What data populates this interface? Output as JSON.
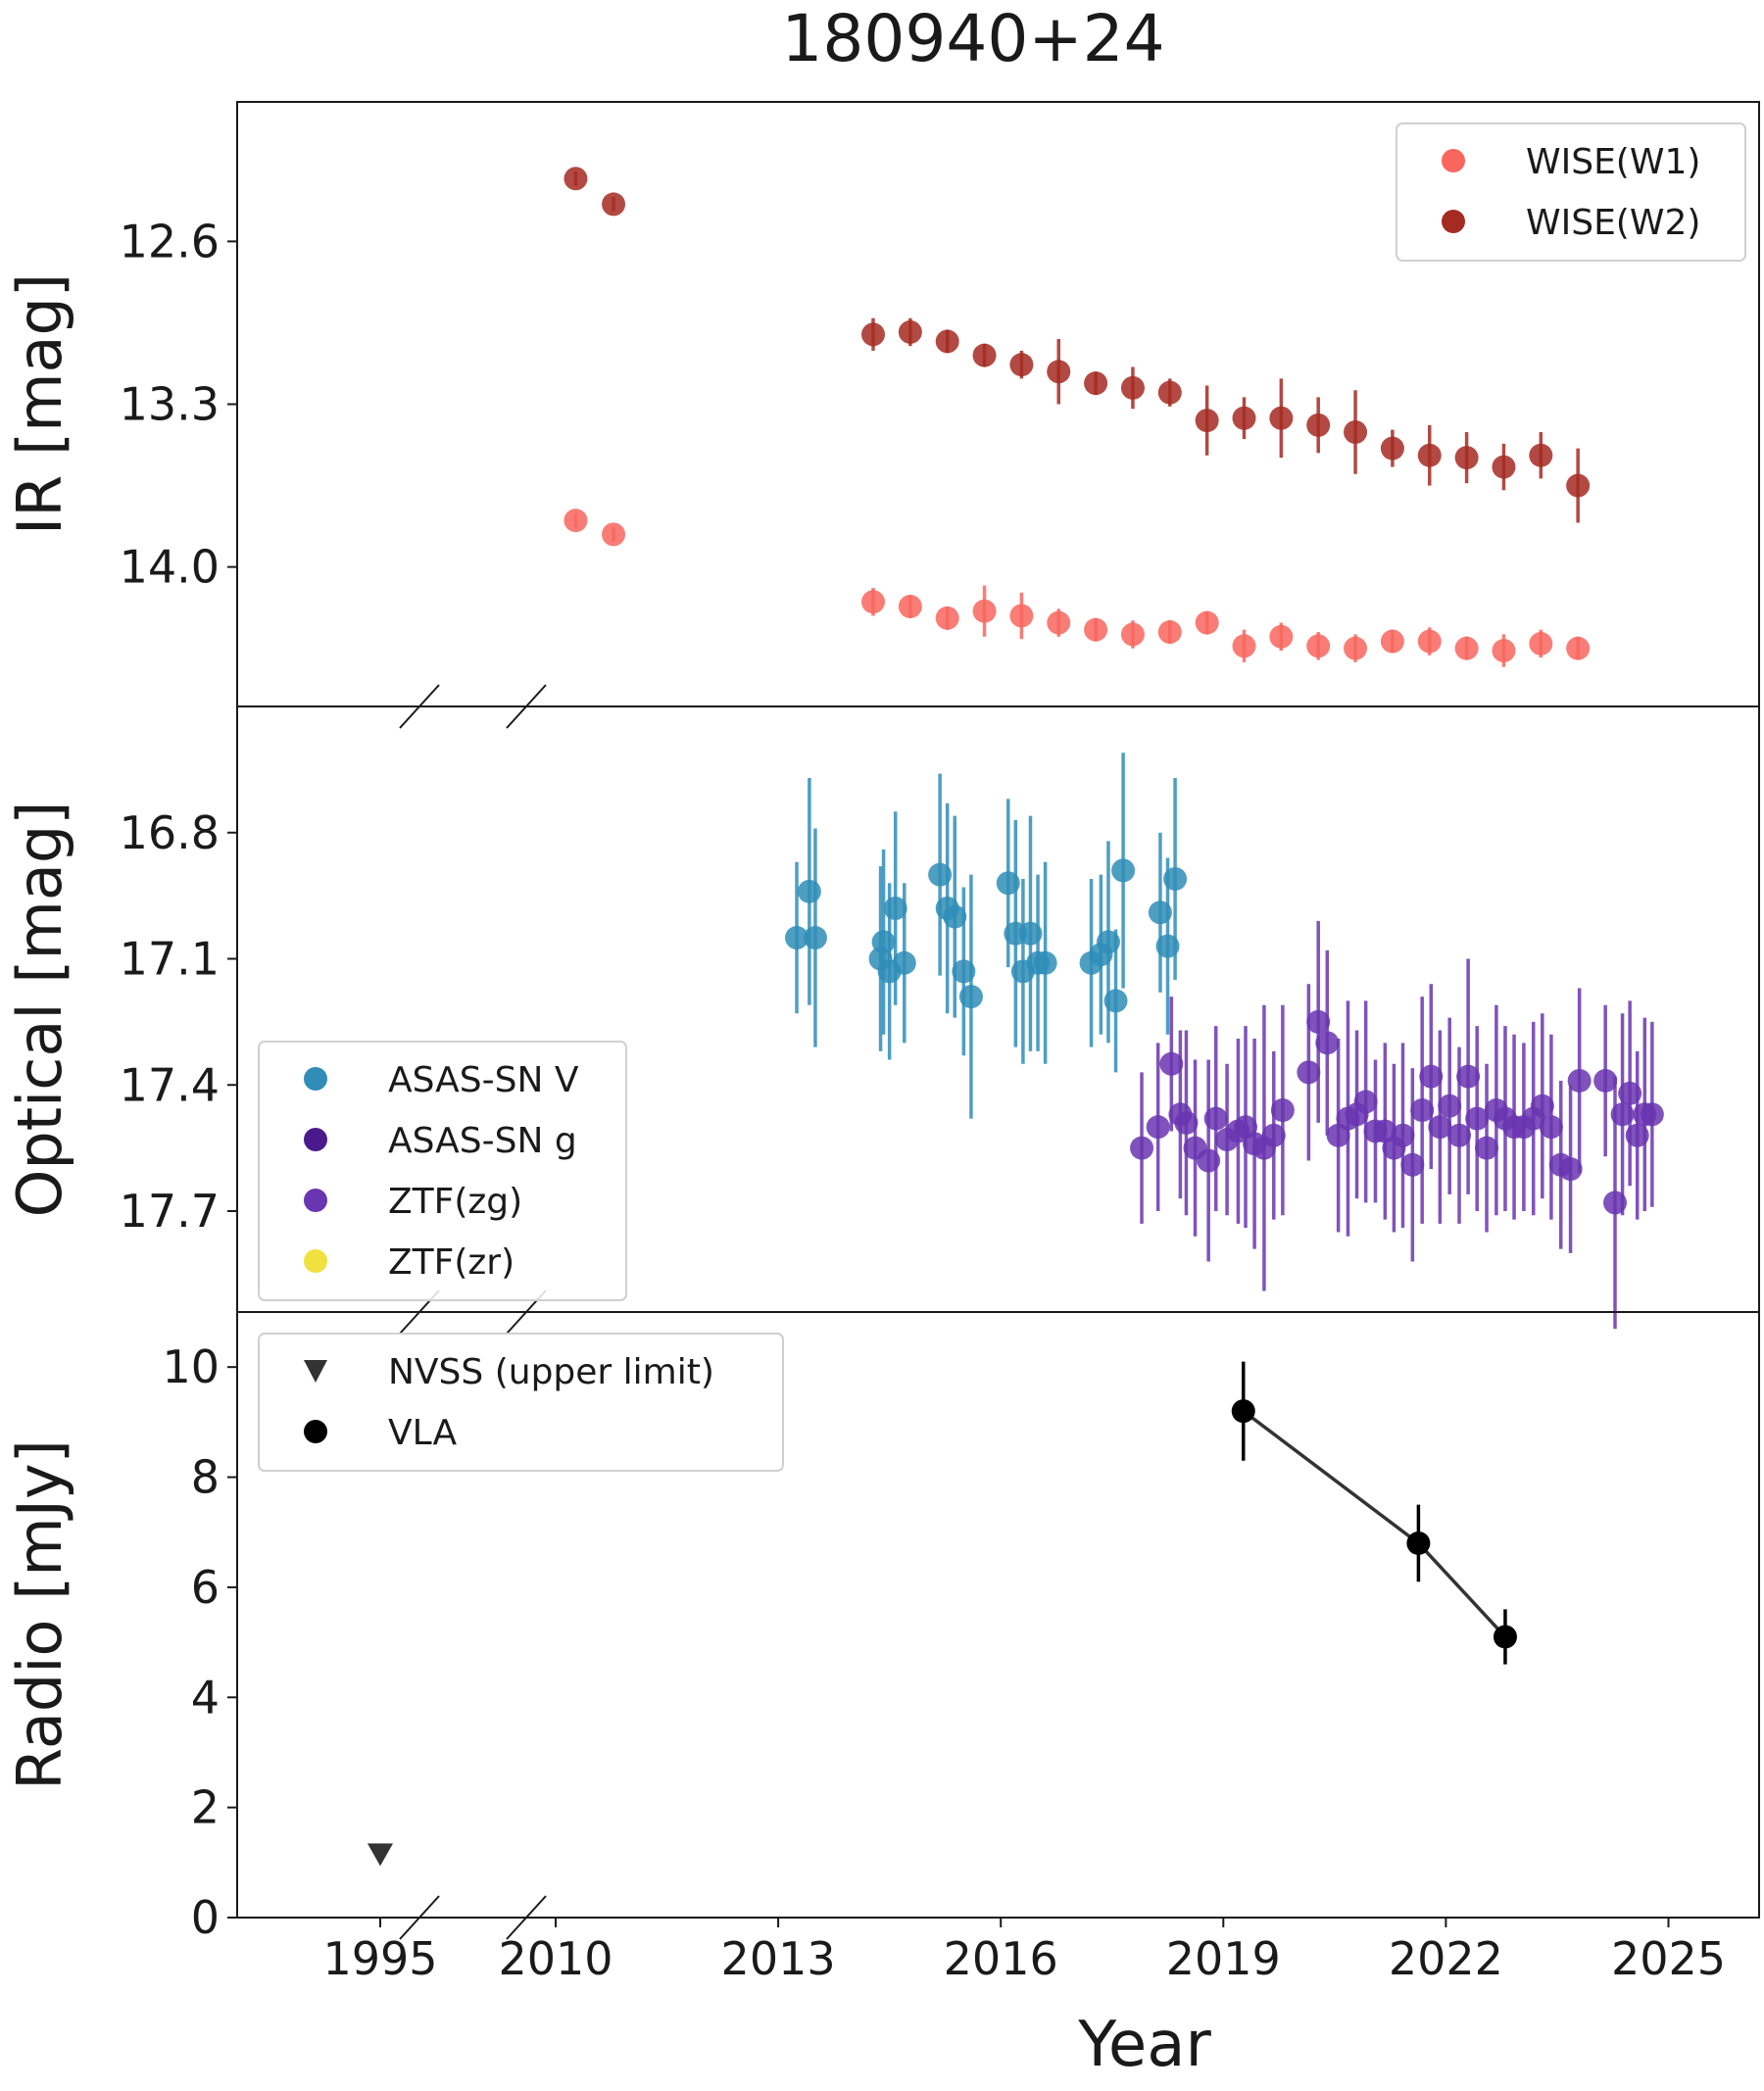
{
  "chart_data": {
    "type": "scatter",
    "title": "180940+24",
    "xlabel": "Year",
    "x_ticks": [
      "1995",
      "2010",
      "2013",
      "2016",
      "2019",
      "2022",
      "2025"
    ],
    "x_axis_break": "between 1995 and 2010",
    "panels": [
      {
        "id": "ir",
        "ylabel": "IR [mag]",
        "y_inverted": true,
        "ylim": [
          12.0,
          14.6
        ],
        "y_ticks": [
          "12.6",
          "13.3",
          "14.0"
        ],
        "legend_position": "top-right",
        "series": [
          {
            "name": "WISE(W1)",
            "color": "#f8665e",
            "x": [
              2010.27,
              2010.78,
              2014.28,
              2014.78,
              2015.28,
              2015.78,
              2016.28,
              2016.78,
              2017.28,
              2017.78,
              2018.28,
              2018.78,
              2019.28,
              2019.78,
              2020.28,
              2020.78,
              2021.28,
              2021.78,
              2022.28,
              2022.78,
              2023.28,
              2023.78
            ],
            "y": [
              13.8,
              13.86,
              14.15,
              14.17,
              14.22,
              14.19,
              14.21,
              14.24,
              14.27,
              14.29,
              14.28,
              14.24,
              14.34,
              14.3,
              14.34,
              14.35,
              14.32,
              14.32,
              14.35,
              14.36,
              14.33,
              14.35
            ],
            "yerr": [
              0.03,
              0.03,
              0.06,
              0.05,
              0.05,
              0.11,
              0.1,
              0.06,
              0.05,
              0.06,
              0.05,
              0.05,
              0.07,
              0.06,
              0.06,
              0.06,
              0.05,
              0.06,
              0.05,
              0.07,
              0.06,
              0.05
            ]
          },
          {
            "name": "WISE(W2)",
            "color": "#a52a22",
            "x": [
              2010.27,
              2010.78,
              2014.28,
              2014.78,
              2015.28,
              2015.78,
              2016.28,
              2016.78,
              2017.28,
              2017.78,
              2018.28,
              2018.78,
              2019.28,
              2019.78,
              2020.28,
              2020.78,
              2021.28,
              2021.78,
              2022.28,
              2022.78,
              2023.28,
              2023.78
            ],
            "y": [
              12.33,
              12.44,
              13.0,
              12.99,
              13.03,
              13.09,
              13.13,
              13.16,
              13.21,
              13.23,
              13.25,
              13.37,
              13.36,
              13.36,
              13.39,
              13.42,
              13.49,
              13.52,
              13.53,
              13.57,
              13.52,
              13.65
            ],
            "yerr": [
              0.03,
              0.03,
              0.07,
              0.06,
              0.05,
              0.05,
              0.06,
              0.14,
              0.05,
              0.09,
              0.06,
              0.15,
              0.09,
              0.17,
              0.12,
              0.18,
              0.08,
              0.13,
              0.11,
              0.1,
              0.1,
              0.16
            ]
          }
        ]
      },
      {
        "id": "optical",
        "ylabel": "Optical [mag]",
        "y_inverted": true,
        "ylim": [
          16.5,
          17.94
        ],
        "y_ticks": [
          "16.8",
          "17.1",
          "17.4",
          "17.7"
        ],
        "legend_position": "bottom-left",
        "series": [
          {
            "name": "ASAS-SN V",
            "color": "#2f8db7",
            "x": [
              2013.25,
              2013.42,
              2013.5,
              2014.38,
              2014.42,
              2014.5,
              2014.58,
              2014.7,
              2015.18,
              2015.28,
              2015.38,
              2015.5,
              2015.6,
              2016.1,
              2016.2,
              2016.3,
              2016.4,
              2016.5,
              2016.6,
              2017.22,
              2017.35,
              2017.45,
              2017.55,
              2017.65,
              2018.15,
              2018.25,
              2018.35
            ],
            "y": [
              17.05,
              16.94,
              17.05,
              17.1,
              17.06,
              17.13,
              16.98,
              17.11,
              16.9,
              16.98,
              17.0,
              17.13,
              17.19,
              16.92,
              17.04,
              17.13,
              17.04,
              17.11,
              17.11,
              17.11,
              17.09,
              17.06,
              17.2,
              16.89,
              16.99,
              17.07,
              16.91
            ],
            "yerr": [
              0.18,
              0.27,
              0.26,
              0.22,
              0.22,
              0.21,
              0.23,
              0.19,
              0.24,
              0.25,
              0.24,
              0.2,
              0.29,
              0.2,
              0.27,
              0.22,
              0.28,
              0.21,
              0.24,
              0.2,
              0.19,
              0.24,
              0.17,
              0.28,
              0.19,
              0.21,
              0.24
            ]
          },
          {
            "name": "ASAS-SN g",
            "color": "#4a1a8c",
            "x": [],
            "y": [],
            "yerr": []
          },
          {
            "name": "ZTF(zg)",
            "color": "#6a35b0",
            "x": [
              2017.9,
              2018.12,
              2018.3,
              2018.42,
              2018.5,
              2018.62,
              2018.8,
              2018.9,
              2019.05,
              2019.2,
              2019.3,
              2019.42,
              2019.55,
              2019.68,
              2019.8,
              2020.15,
              2020.28,
              2020.4,
              2020.55,
              2020.68,
              2020.8,
              2020.92,
              2021.05,
              2021.18,
              2021.3,
              2021.42,
              2021.55,
              2021.68,
              2021.8,
              2021.92,
              2022.05,
              2022.18,
              2022.3,
              2022.42,
              2022.55,
              2022.68,
              2022.8,
              2022.92,
              2023.05,
              2023.18,
              2023.3,
              2023.42,
              2023.55,
              2023.68,
              2023.8,
              2024.15,
              2024.28,
              2024.38,
              2024.48,
              2024.58,
              2024.68,
              2024.78
            ],
            "y": [
              17.55,
              17.5,
              17.35,
              17.47,
              17.49,
              17.55,
              17.58,
              17.48,
              17.53,
              17.51,
              17.5,
              17.54,
              17.55,
              17.52,
              17.46,
              17.37,
              17.25,
              17.3,
              17.52,
              17.48,
              17.47,
              17.44,
              17.51,
              17.51,
              17.55,
              17.52,
              17.59,
              17.46,
              17.38,
              17.5,
              17.45,
              17.52,
              17.38,
              17.48,
              17.55,
              17.46,
              17.48,
              17.5,
              17.5,
              17.48,
              17.45,
              17.5,
              17.59,
              17.6,
              17.39,
              17.39,
              17.68,
              17.47,
              17.42,
              17.52,
              17.47,
              17.47
            ],
            "yerr": [
              0.18,
              0.2,
              0.16,
              0.2,
              0.22,
              0.21,
              0.24,
              0.22,
              0.18,
              0.22,
              0.24,
              0.25,
              0.34,
              0.2,
              0.25,
              0.21,
              0.24,
              0.22,
              0.23,
              0.28,
              0.2,
              0.24,
              0.17,
              0.21,
              0.2,
              0.22,
              0.23,
              0.27,
              0.22,
              0.23,
              0.21,
              0.21,
              0.28,
              0.22,
              0.2,
              0.25,
              0.22,
              0.22,
              0.2,
              0.23,
              0.22,
              0.22,
              0.2,
              0.2,
              0.22,
              0.18,
              0.3,
              0.24,
              0.22,
              0.2,
              0.23,
              0.22
            ]
          },
          {
            "name": "ZTF(zr)",
            "color": "#f0e040",
            "x": [],
            "y": [],
            "yerr": []
          }
        ]
      },
      {
        "id": "radio",
        "ylabel": "Radio [mJy]",
        "y_inverted": false,
        "ylim": [
          0,
          11
        ],
        "y_ticks": [
          "0",
          "2",
          "4",
          "6",
          "8",
          "10"
        ],
        "legend_position": "top-left",
        "series": [
          {
            "name": "NVSS (upper limit)",
            "color": "#333333",
            "marker": "triangle-down",
            "x": [
              1995.0
            ],
            "y": [
              1.15
            ]
          },
          {
            "name": "VLA",
            "color": "#000000",
            "marker": "circle",
            "connected": true,
            "x": [
              2019.27,
              2021.63,
              2022.8
            ],
            "y": [
              9.2,
              6.8,
              5.1
            ],
            "yerr": [
              0.9,
              0.7,
              0.5
            ]
          }
        ]
      }
    ]
  }
}
